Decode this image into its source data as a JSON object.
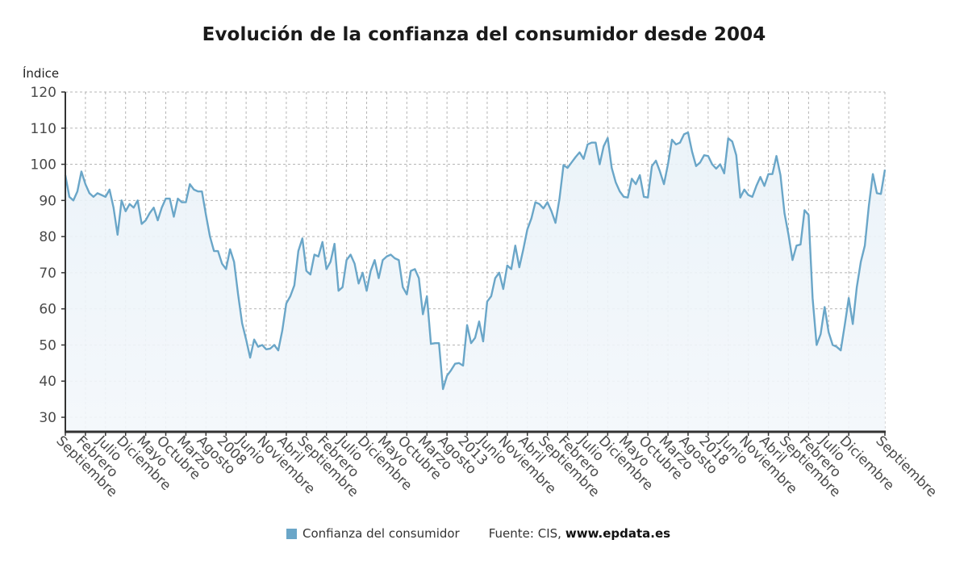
{
  "chart_data": {
    "type": "area",
    "title": "Evolución de la confianza del consumidor desde 2004",
    "ylabel": "Índice",
    "xlabel": "",
    "ylim": [
      26,
      120
    ],
    "yticks": [
      30,
      40,
      50,
      60,
      70,
      80,
      90,
      100,
      110,
      120
    ],
    "grid": true,
    "legend_position": "bottom-center",
    "x_start": "Septiembre 2004",
    "x_end": "Septiembre 2021",
    "x_frequency": "monthly",
    "xtick_step_months": 5,
    "xtick_labels": [
      "Septiembre",
      "Febrero",
      "Julio",
      "Diciembre",
      "Mayo",
      "Octubre",
      "Marzo",
      "Agosto",
      "2008",
      "Junio",
      "Noviembre",
      "Abril",
      "Septiembre",
      "Febrero",
      "Julio",
      "Diciembre",
      "Mayo",
      "Octubre",
      "Marzo",
      "Agosto",
      "2013",
      "Junio",
      "Noviembre",
      "Abril",
      "Septiembre",
      "Febrero",
      "Julio",
      "Diciembre",
      "Mayo",
      "Octubre",
      "Marzo",
      "Agosto",
      "2018",
      "Junio",
      "Noviembre",
      "Abril",
      "Septiembre",
      "Febrero",
      "Julio",
      "Diciembre",
      "Septiembre"
    ],
    "xtick_month_index": [
      0,
      5,
      10,
      15,
      20,
      25,
      30,
      35,
      40,
      45,
      50,
      55,
      60,
      65,
      70,
      75,
      80,
      85,
      90,
      95,
      100,
      105,
      110,
      115,
      120,
      125,
      130,
      135,
      140,
      145,
      150,
      155,
      160,
      165,
      170,
      175,
      180,
      185,
      190,
      195,
      204
    ],
    "series": [
      {
        "name": "Confianza del consumidor",
        "color": "#6aa6c8",
        "values": [
          97,
          91,
          90,
          92.5,
          98,
          94.5,
          92,
          91,
          92,
          91.5,
          91,
          93,
          88,
          80.5,
          90,
          87,
          89,
          88,
          90,
          83.5,
          84.5,
          86.5,
          88,
          84.5,
          88,
          90.5,
          90.5,
          85.5,
          90.5,
          89.5,
          89.5,
          94.5,
          93,
          92.5,
          92.5,
          86,
          80,
          76,
          76,
          72.5,
          71,
          76.5,
          73,
          64,
          56,
          51.5,
          46.5,
          51.5,
          49.5,
          50,
          48.8,
          49,
          50,
          48.5,
          54,
          61.5,
          63.5,
          66.5,
          76,
          79.5,
          70.5,
          69.5,
          75,
          74.5,
          78.5,
          71,
          73,
          78,
          65,
          66,
          73.5,
          75,
          72.5,
          67,
          70,
          65,
          70.5,
          73.5,
          68.5,
          73.5,
          74.5,
          75,
          74,
          73.5,
          66,
          64,
          70.5,
          71,
          68.5,
          58.5,
          63.5,
          50.3,
          50.5,
          50.5,
          37.8,
          41.5,
          43,
          44.8,
          45,
          44.3,
          55.5,
          50.5,
          52,
          56.5,
          51,
          62,
          63.5,
          68.5,
          70,
          65.5,
          72,
          71,
          77.5,
          71.5,
          76.5,
          82,
          85,
          89.5,
          89,
          87.8,
          89.5,
          87,
          83.8,
          90.5,
          99.8,
          99,
          100.5,
          102,
          103.3,
          101.5,
          105.5,
          106,
          106,
          100,
          105,
          107.3,
          99,
          95,
          92.5,
          91,
          90.8,
          96,
          94.5,
          97,
          91,
          90.8,
          99.5,
          101,
          98,
          94.5,
          100,
          106.8,
          105.5,
          106,
          108.3,
          108.8,
          103.5,
          99.5,
          100.5,
          102.5,
          102.3,
          100,
          98.8,
          100,
          97.5,
          107.2,
          106.3,
          102.5,
          90.8,
          93,
          91.5,
          91,
          94,
          96.5,
          94,
          97.3,
          97.3,
          102.3,
          97,
          86.5,
          80.5,
          73.5,
          77.5,
          77.8,
          87.3,
          86,
          63,
          50,
          53,
          60.5,
          53.5,
          50,
          49.5,
          48.5,
          55.5,
          63,
          55.8,
          66,
          73,
          77.5,
          88.5,
          97.3,
          92,
          91.8,
          98.5
        ]
      }
    ]
  },
  "legend": {
    "label": "Confianza del consumidor",
    "source_prefix": "Fuente: CIS,",
    "source_site": "www.epdata.es"
  }
}
